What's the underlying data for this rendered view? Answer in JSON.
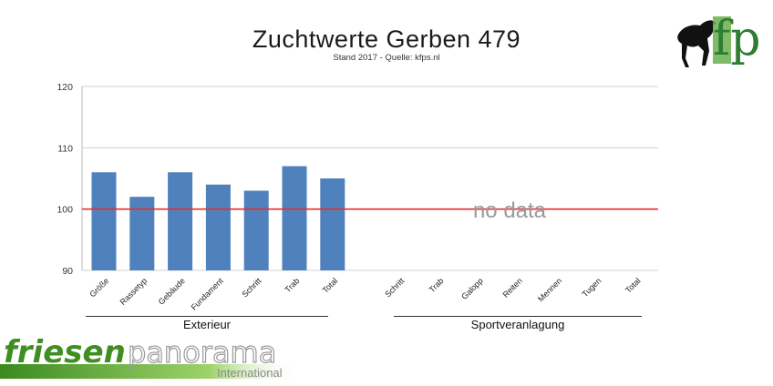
{
  "title": "Zuchtwerte Gerben 479",
  "subtitle": "Stand 2017 - Quelle: kfps.nl",
  "no_data_label": "no data",
  "groups": [
    "Exterieur",
    "Sportveranlagung"
  ],
  "logo_text": {
    "brand_part1": "friesen",
    "brand_part2": "panorama",
    "brand_sub": "International",
    "corner_logo_letters": "fp"
  },
  "colors": {
    "bar": "#4f81bd",
    "reference_line": "#e03030",
    "grid": "#d0d0d0",
    "no_data": "#9a9a9a",
    "brand_green": "#5aa52a"
  },
  "chart_data": {
    "type": "bar",
    "ylim": [
      90,
      120
    ],
    "yticks": [
      90,
      100,
      110,
      120
    ],
    "reference_line": 100,
    "grid": true,
    "categories": [
      "Größe",
      "Rassetyp",
      "Gebäude",
      "Fundament",
      "Schritt",
      "Trab",
      "Total",
      "Schritt",
      "Trab",
      "Galopp",
      "Reiten",
      "Mennen",
      "Tugen",
      "Total"
    ],
    "values": [
      106,
      102,
      106,
      104,
      103,
      107,
      105,
      null,
      null,
      null,
      null,
      null,
      null,
      null
    ]
  }
}
